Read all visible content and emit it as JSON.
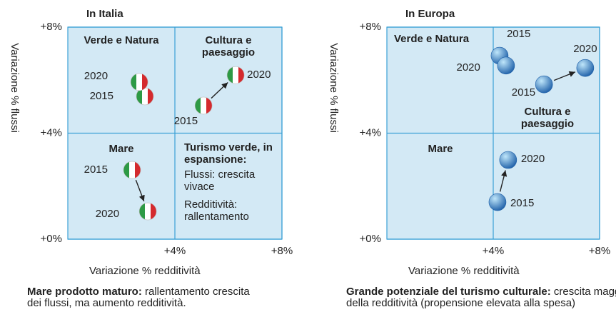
{
  "chart_data": [
    {
      "type": "scatter",
      "title": "In Italia",
      "xlabel": "Variazione % redditività",
      "ylabel": "Variazione % flussi",
      "xlim": [
        0,
        8
      ],
      "ylim": [
        0,
        8
      ],
      "xticks": [
        {
          "value": 4,
          "label": "+4%"
        },
        {
          "value": 8,
          "label": "+8%"
        }
      ],
      "yticks": [
        {
          "value": 0,
          "label": "+0%"
        },
        {
          "value": 4,
          "label": "+4%"
        },
        {
          "value": 8,
          "label": "+8%"
        }
      ],
      "grid": true,
      "plot_bg": "#d3e9f5",
      "grid_color": "#3aa0d5",
      "marker": "flag",
      "marker_colors": [
        "#2d9a45",
        "#ffffff",
        "#d42a2e"
      ],
      "series": [
        {
          "name": "Verde e Natura",
          "labels": [
            "2015",
            "2020"
          ],
          "x": [
            2.88,
            2.67
          ],
          "values": [
            5.39,
            5.93
          ]
        },
        {
          "name": "Cultura e paesaggio",
          "labels": [
            "2015",
            "2020"
          ],
          "x": [
            5.07,
            6.27
          ],
          "values": [
            5.04,
            6.19
          ]
        },
        {
          "name": "Mare",
          "labels": [
            "2015",
            "2020"
          ],
          "x": [
            2.4,
            2.99
          ],
          "values": [
            2.61,
            1.05
          ]
        }
      ],
      "notes": [
        "Turismo verde, in espansione:",
        "Flussi: crescita vivace",
        "Redditività: rallentamento"
      ],
      "caption": {
        "bold": "Mare prodotto maturo:",
        "text": "rallentamento crescita dei flussi, ma aumento redditività."
      }
    },
    {
      "type": "scatter",
      "title": "In Europa",
      "xlabel": "Variazione % redditività",
      "ylabel": "Variazione % flussi",
      "xlim": [
        0,
        8
      ],
      "ylim": [
        0,
        8
      ],
      "xticks": [
        {
          "value": 4,
          "label": "+4%"
        },
        {
          "value": 8,
          "label": "+8%"
        }
      ],
      "yticks": [
        {
          "value": 0,
          "label": "+0%"
        },
        {
          "value": 4,
          "label": "+4%"
        },
        {
          "value": 8,
          "label": "+8%"
        }
      ],
      "grid": true,
      "plot_bg": "#d3e9f5",
      "grid_color": "#3aa0d5",
      "marker": "globe",
      "marker_colors": [
        "#bfe6fa",
        "#1d5fa8"
      ],
      "series": [
        {
          "name": "Verde e Natura",
          "labels": [
            "2015",
            "2020"
          ],
          "x": [
            4.24,
            4.48
          ],
          "values": [
            6.92,
            6.55
          ]
        },
        {
          "name": "Cultura e paesaggio",
          "labels": [
            "2015",
            "2020"
          ],
          "x": [
            5.91,
            7.46
          ],
          "values": [
            5.84,
            6.46
          ]
        },
        {
          "name": "Mare",
          "labels": [
            "2015",
            "2020"
          ],
          "x": [
            4.16,
            4.56
          ],
          "values": [
            1.4,
            2.99
          ]
        }
      ],
      "caption": {
        "bold": "Grande potenziale del turismo culturale:",
        "text": "crescita maggiore della redditività (propensione elevata alla spesa)"
      }
    }
  ]
}
